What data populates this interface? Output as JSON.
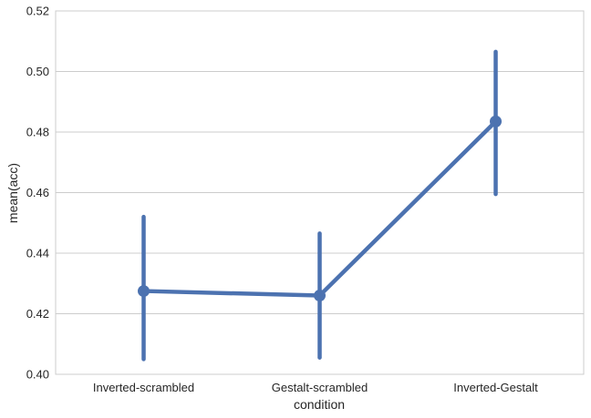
{
  "chart_data": {
    "type": "line",
    "xlabel": "condition",
    "ylabel": "mean(acc)",
    "categories": [
      "Inverted-scrambled",
      "Gestalt-scrambled",
      "Inverted-Gestalt"
    ],
    "series": [
      {
        "values": [
          0.4275,
          0.426,
          0.4835
        ],
        "ci_low": [
          0.405,
          0.4055,
          0.4595
        ],
        "ci_high": [
          0.452,
          0.4465,
          0.5065
        ]
      }
    ],
    "ylim": [
      0.4,
      0.52
    ],
    "yticks": [
      "0.40",
      "0.42",
      "0.44",
      "0.46",
      "0.48",
      "0.50",
      "0.52"
    ],
    "grid": "horizontal",
    "color": "#4c72b0"
  }
}
